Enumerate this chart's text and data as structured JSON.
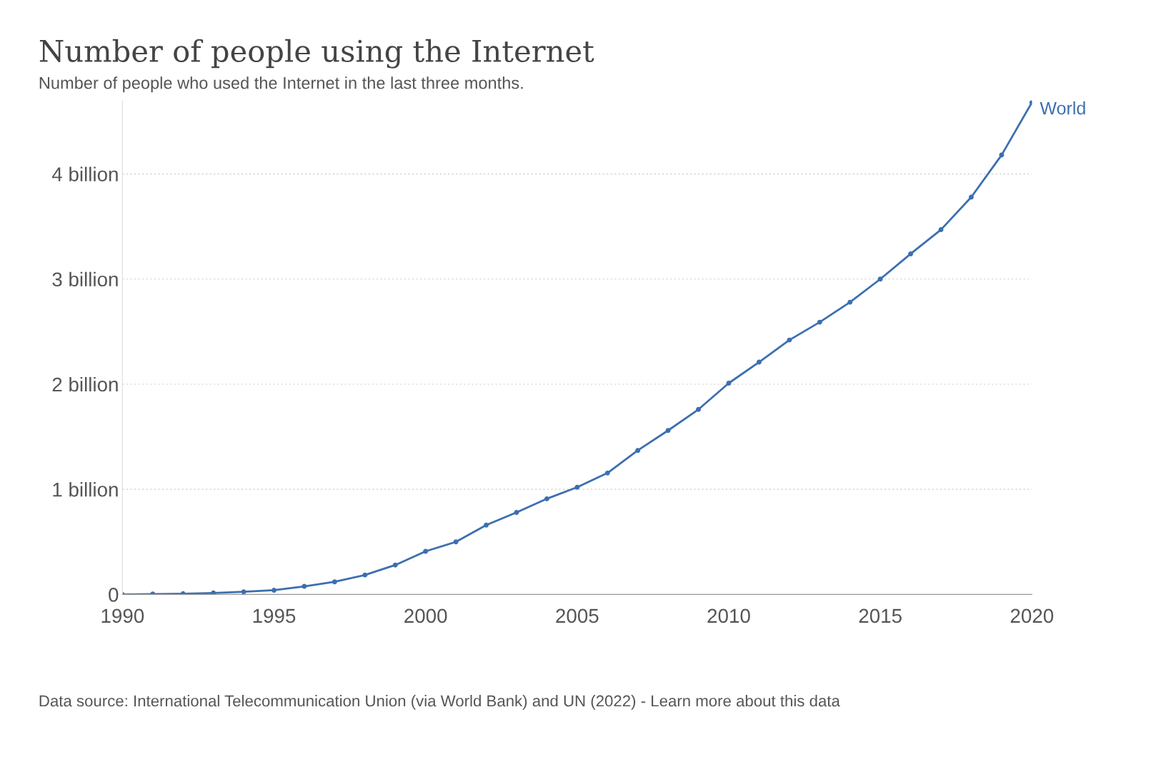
{
  "chart_data": {
    "type": "line",
    "title": "Number of people using the Internet",
    "subtitle": "Number of people who used the Internet in the last three months.",
    "x": [
      1990,
      1991,
      1992,
      1993,
      1994,
      1995,
      1996,
      1997,
      1998,
      1999,
      2000,
      2001,
      2002,
      2003,
      2004,
      2005,
      2006,
      2007,
      2008,
      2009,
      2010,
      2011,
      2012,
      2013,
      2014,
      2015,
      2016,
      2017,
      2018,
      2019,
      2020
    ],
    "series": [
      {
        "name": "World",
        "color": "#3c6fb0",
        "values": [
          0,
          0.004,
          0.007,
          0.014,
          0.025,
          0.04,
          0.077,
          0.12,
          0.185,
          0.28,
          0.41,
          0.5,
          0.66,
          0.78,
          0.91,
          1.02,
          1.155,
          1.37,
          1.56,
          1.76,
          2.01,
          2.21,
          2.42,
          2.59,
          2.78,
          3.0,
          3.24,
          3.47,
          3.78,
          4.18,
          4.68
        ]
      }
    ],
    "xlim": [
      1990,
      2020
    ],
    "xticks": [
      1990,
      1995,
      2000,
      2005,
      2010,
      2015,
      2020
    ],
    "ylim": [
      0,
      4.7
    ],
    "yticks": [
      0,
      {
        "value": 1,
        "label": "1 billion"
      },
      {
        "value": 2,
        "label": "2 billion"
      },
      {
        "value": 3,
        "label": "3 billion"
      },
      {
        "value": 4,
        "label": "4 billion"
      }
    ],
    "grid": "y",
    "legend": false,
    "marker": "circle",
    "line_style": "solid",
    "annotations": [
      "Data source: International Telecommunication Union (via World Bank) and UN (2022) - Learn more about this data"
    ]
  }
}
